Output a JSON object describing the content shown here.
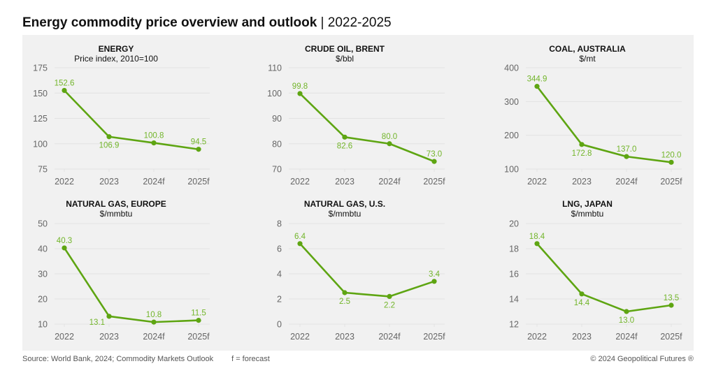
{
  "header": {
    "title_main": "Energy commodity price overview and outlook",
    "title_sep": " | ",
    "title_period": "2022-2025"
  },
  "footer": {
    "source": "Source: World Bank, 2024; Commodity Markets Outlook",
    "note": "f = forecast",
    "copyright": "© 2024 Geopolitical Futures ®"
  },
  "colors": {
    "line": "#5ea512",
    "label": "#72b52a",
    "grid": "#e2e2e2",
    "panel_bg": "#f1f1f1"
  },
  "chart_data": [
    {
      "type": "line",
      "title": "ENERGY",
      "subtitle": "Price index, 2010=100",
      "categories": [
        "2022",
        "2023",
        "2024f",
        "2025f"
      ],
      "values": [
        152.6,
        106.9,
        100.8,
        94.5
      ],
      "labels": [
        "152.6",
        "106.9",
        "100.8",
        "94.5"
      ],
      "label_pos": [
        "above",
        "below",
        "above",
        "above"
      ],
      "ylim": [
        75,
        175
      ],
      "yticks": [
        75,
        100,
        125,
        150,
        175
      ],
      "grid": true
    },
    {
      "type": "line",
      "title": "CRUDE OIL, BRENT",
      "subtitle": "$/bbl",
      "categories": [
        "2022",
        "2023",
        "2024f",
        "2025f"
      ],
      "values": [
        99.8,
        82.6,
        80.0,
        73.0
      ],
      "labels": [
        "99.8",
        "82.6",
        "80.0",
        "73.0"
      ],
      "label_pos": [
        "above",
        "below",
        "above",
        "above"
      ],
      "ylim": [
        70,
        110
      ],
      "yticks": [
        70,
        80,
        90,
        100,
        110
      ],
      "grid": true
    },
    {
      "type": "line",
      "title": "COAL, AUSTRALIA",
      "subtitle": "$/mt",
      "categories": [
        "2022",
        "2023",
        "2024f",
        "2025f"
      ],
      "values": [
        344.9,
        172.8,
        137.0,
        120.0
      ],
      "labels": [
        "344.9",
        "172.8",
        "137.0",
        "120.0"
      ],
      "label_pos": [
        "above",
        "below",
        "above",
        "above"
      ],
      "ylim": [
        100,
        400
      ],
      "yticks": [
        100,
        200,
        300,
        400
      ],
      "grid": true
    },
    {
      "type": "line",
      "title": "NATURAL GAS, EUROPE",
      "subtitle": "$/mmbtu",
      "categories": [
        "2022",
        "2023",
        "2024f",
        "2025f"
      ],
      "values": [
        40.3,
        13.1,
        10.8,
        11.5
      ],
      "labels": [
        "40.3",
        "13.1",
        "10.8",
        "11.5"
      ],
      "label_pos": [
        "above",
        "left",
        "above",
        "above"
      ],
      "ylim": [
        10,
        50
      ],
      "yticks": [
        10,
        20,
        30,
        40,
        50
      ],
      "grid": true
    },
    {
      "type": "line",
      "title": "NATURAL GAS, U.S.",
      "subtitle": "$/mmbtu",
      "categories": [
        "2022",
        "2023",
        "2024f",
        "2025f"
      ],
      "values": [
        6.4,
        2.5,
        2.2,
        3.4
      ],
      "labels": [
        "6.4",
        "2.5",
        "2.2",
        "3.4"
      ],
      "label_pos": [
        "above",
        "below",
        "below",
        "above"
      ],
      "ylim": [
        0,
        8
      ],
      "yticks": [
        0,
        2,
        4,
        6,
        8
      ],
      "grid": true
    },
    {
      "type": "line",
      "title": "LNG, JAPAN",
      "subtitle": "$/mmbtu",
      "categories": [
        "2022",
        "2023",
        "2024f",
        "2025f"
      ],
      "values": [
        18.4,
        14.4,
        13.0,
        13.5
      ],
      "labels": [
        "18.4",
        "14.4",
        "13.0",
        "13.5"
      ],
      "label_pos": [
        "above",
        "below",
        "below",
        "above"
      ],
      "ylim": [
        12,
        20
      ],
      "yticks": [
        12,
        14,
        16,
        18,
        20
      ],
      "grid": true
    }
  ]
}
